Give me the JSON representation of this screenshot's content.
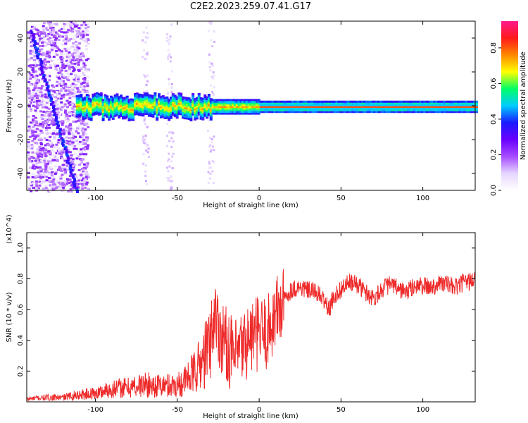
{
  "title": "C2E2.2023.259.07.41.G17",
  "colors": {
    "snr_line": "#ee2a2a",
    "colormap": [
      "#ffffff",
      "#e6d6ff",
      "#a64dff",
      "#6a00ff",
      "#1a1aff",
      "#00ccff",
      "#00ff66",
      "#ffff00",
      "#ff8800",
      "#ff1a1a",
      "#ff1a8c"
    ]
  },
  "chart_data": [
    {
      "type": "heatmap",
      "title": "",
      "xlabel": "Height of straight line (km)",
      "ylabel": "Frequency (Hz)",
      "xlim": [
        -142,
        132
      ],
      "ylim": [
        -50,
        50
      ],
      "x_ticks": [
        "-100",
        "-50",
        "0",
        "50",
        "100"
      ],
      "y_ticks": [
        "-40",
        "-20",
        "0",
        "20",
        "40"
      ],
      "colorbar": {
        "label": "Normalized spectral amplitude",
        "range": [
          0,
          0.95
        ],
        "ticks": [
          "0.0",
          "0.2",
          "0.4",
          "0.6",
          "0.8"
        ]
      },
      "features": {
        "strong_band_center_hz": 0,
        "band_start_km": -112,
        "band_end_km": 132,
        "noisy_region_km": [
          -142,
          -105
        ],
        "diagonal_track": {
          "from_km": -140,
          "from_hz": 45,
          "to_km": -112,
          "to_hz": -50
        }
      }
    },
    {
      "type": "line",
      "title": "",
      "xlabel": "Height of straight line (km)",
      "ylabel": "SNR (10 * v/v)",
      "scale_note": "(x10^4)",
      "xlim": [
        -142,
        132
      ],
      "ylim": [
        0,
        1.1
      ],
      "x_ticks": [
        "-100",
        "-50",
        "0",
        "50",
        "100"
      ],
      "y_ticks": [
        "0.2",
        "0.4",
        "0.6",
        "0.8",
        "1.0"
      ],
      "series": [
        {
          "x": [
            -142,
            -130,
            -120,
            -110,
            -100,
            -90,
            -80,
            -70,
            -60,
            -50,
            -45,
            -40,
            -35,
            -30,
            -27,
            -25,
            -20,
            -15,
            -10,
            -5,
            0,
            5,
            10,
            15,
            20,
            25,
            30,
            35,
            40,
            43,
            45,
            50,
            55,
            60,
            65,
            70,
            75,
            80,
            85,
            90,
            95,
            100,
            105,
            110,
            115,
            120,
            125,
            132
          ],
          "y": [
            0.02,
            0.03,
            0.03,
            0.05,
            0.06,
            0.09,
            0.1,
            0.12,
            0.11,
            0.12,
            0.15,
            0.2,
            0.28,
            0.4,
            0.62,
            0.5,
            0.4,
            0.3,
            0.38,
            0.45,
            0.47,
            0.47,
            0.6,
            0.67,
            0.74,
            0.75,
            0.73,
            0.72,
            0.66,
            0.6,
            0.68,
            0.74,
            0.78,
            0.77,
            0.72,
            0.68,
            0.74,
            0.77,
            0.74,
            0.72,
            0.76,
            0.76,
            0.75,
            0.78,
            0.77,
            0.75,
            0.78,
            0.8
          ]
        }
      ]
    }
  ]
}
